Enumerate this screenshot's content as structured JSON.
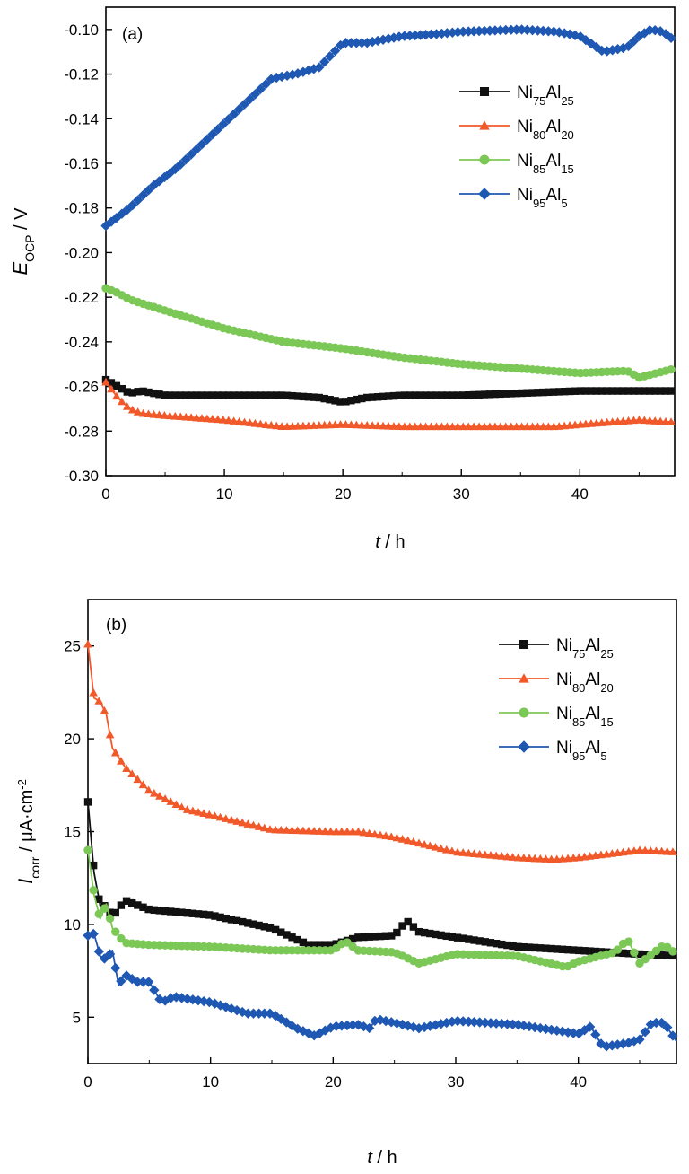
{
  "colors": {
    "Ni75Al25": "#111111",
    "Ni80Al20": "#f2592a",
    "Ni85Al15": "#7cc856",
    "Ni95Al5": "#1f58b3"
  },
  "legend": [
    {
      "key": "Ni75Al25",
      "base": "Ni",
      "sub1": "75",
      "mid": "Al",
      "sub2": "25",
      "marker": "square"
    },
    {
      "key": "Ni80Al20",
      "base": "Ni",
      "sub1": "80",
      "mid": "Al",
      "sub2": "20",
      "marker": "triangle"
    },
    {
      "key": "Ni85Al15",
      "base": "Ni",
      "sub1": "85",
      "mid": "Al",
      "sub2": "15",
      "marker": "circle"
    },
    {
      "key": "Ni95Al5",
      "base": "Ni",
      "sub1": "95",
      "mid": "Al",
      "sub2": "5",
      "marker": "diamond"
    }
  ],
  "chart_data": [
    {
      "type": "line",
      "panel_label": "(a)",
      "xlabel": {
        "italic": "t",
        "rest": " / h"
      },
      "ylabel": {
        "italic": "E",
        "sub": "OCP",
        "rest": " / V"
      },
      "xlim": [
        0,
        48
      ],
      "ylim": [
        -0.3,
        -0.09
      ],
      "xticks": [
        0,
        10,
        20,
        30,
        40
      ],
      "yticks": [
        -0.1,
        -0.12,
        -0.14,
        -0.16,
        -0.18,
        -0.2,
        -0.22,
        -0.24,
        -0.26,
        -0.28,
        -0.3
      ],
      "legend_position": "upper-right",
      "series": [
        {
          "name": "Ni75Al25",
          "x": [
            0,
            1,
            2,
            3,
            5,
            10,
            15,
            18,
            20,
            22,
            25,
            30,
            35,
            40,
            45,
            48
          ],
          "y": [
            -0.257,
            -0.26,
            -0.263,
            -0.262,
            -0.264,
            -0.264,
            -0.264,
            -0.265,
            -0.267,
            -0.265,
            -0.264,
            -0.264,
            -0.263,
            -0.262,
            -0.262,
            -0.262
          ]
        },
        {
          "name": "Ni80Al20",
          "x": [
            0,
            1,
            2,
            3,
            5,
            10,
            15,
            20,
            25,
            30,
            35,
            38,
            40,
            45,
            48
          ],
          "y": [
            -0.258,
            -0.265,
            -0.27,
            -0.272,
            -0.273,
            -0.275,
            -0.278,
            -0.277,
            -0.278,
            -0.278,
            -0.278,
            -0.278,
            -0.277,
            -0.275,
            -0.276
          ]
        },
        {
          "name": "Ni85Al15",
          "x": [
            0,
            1,
            2,
            5,
            10,
            15,
            20,
            25,
            30,
            35,
            40,
            44,
            45,
            48
          ],
          "y": [
            -0.216,
            -0.218,
            -0.221,
            -0.226,
            -0.234,
            -0.24,
            -0.243,
            -0.247,
            -0.25,
            -0.252,
            -0.254,
            -0.253,
            -0.256,
            -0.252
          ]
        },
        {
          "name": "Ni95Al5",
          "x": [
            0,
            2,
            4,
            6,
            8,
            10,
            12,
            14,
            16,
            18,
            20,
            22,
            25,
            28,
            30,
            35,
            38,
            40,
            42,
            44,
            45,
            46,
            47,
            48
          ],
          "y": [
            -0.188,
            -0.18,
            -0.17,
            -0.162,
            -0.152,
            -0.142,
            -0.132,
            -0.122,
            -0.12,
            -0.117,
            -0.106,
            -0.106,
            -0.103,
            -0.102,
            -0.101,
            -0.1,
            -0.101,
            -0.103,
            -0.11,
            -0.108,
            -0.103,
            -0.1,
            -0.101,
            -0.105
          ]
        }
      ]
    },
    {
      "type": "line",
      "panel_label": "(b)",
      "xlabel": {
        "italic": "t",
        "rest": " / h"
      },
      "ylabel": {
        "italic": "I",
        "sub": "corr",
        "rest": " / μA·cm",
        "sup": "-2"
      },
      "xlim": [
        0,
        48
      ],
      "ylim": [
        2.5,
        27.5
      ],
      "xticks": [
        0,
        10,
        20,
        30,
        40
      ],
      "yticks": [
        5,
        10,
        15,
        20,
        25
      ],
      "legend_position": "upper-right",
      "series": [
        {
          "name": "Ni75Al25",
          "x": [
            0,
            0.5,
            1,
            1.5,
            2,
            3,
            5,
            10,
            15,
            18,
            20,
            22,
            25,
            26,
            27,
            30,
            35,
            40,
            45,
            48
          ],
          "y": [
            16.6,
            12.8,
            11.0,
            11.0,
            10.4,
            11.3,
            10.8,
            10.5,
            9.8,
            8.9,
            8.9,
            9.3,
            9.4,
            10.2,
            9.6,
            9.3,
            8.8,
            8.6,
            8.4,
            8.3
          ]
        },
        {
          "name": "Ni80Al20",
          "x": [
            0,
            0.5,
            1,
            1.5,
            2,
            3,
            5,
            8,
            10,
            15,
            20,
            22,
            25,
            30,
            35,
            38,
            40,
            45,
            48
          ],
          "y": [
            25.1,
            22.2,
            22.0,
            21.3,
            19.5,
            18.5,
            17.2,
            16.2,
            15.9,
            15.1,
            15.0,
            15.0,
            14.7,
            13.9,
            13.6,
            13.5,
            13.6,
            14.0,
            13.9
          ]
        },
        {
          "name": "Ni85Al15",
          "x": [
            0,
            0.5,
            1,
            1.5,
            2,
            3,
            5,
            10,
            15,
            20,
            21,
            22,
            25,
            27,
            30,
            35,
            39,
            40,
            43,
            44,
            45,
            47,
            48
          ],
          "y": [
            14.0,
            11.6,
            10.3,
            11.1,
            9.8,
            9.0,
            8.9,
            8.8,
            8.6,
            8.6,
            9.1,
            8.6,
            8.5,
            7.9,
            8.4,
            8.3,
            7.7,
            8.0,
            8.5,
            9.2,
            7.9,
            8.9,
            8.4
          ]
        },
        {
          "name": "Ni95Al5",
          "x": [
            0,
            0.5,
            1,
            1.5,
            2,
            2.5,
            3,
            4,
            5,
            6,
            7,
            10,
            13,
            15,
            17,
            18.5,
            20,
            22,
            23,
            23.5,
            25,
            27,
            30,
            35,
            40,
            41,
            42,
            44,
            45,
            46,
            47,
            48
          ],
          "y": [
            9.4,
            9.5,
            8.3,
            8.1,
            8.6,
            6.7,
            7.3,
            6.9,
            6.9,
            5.8,
            6.1,
            5.8,
            5.2,
            5.2,
            4.4,
            4.0,
            4.5,
            4.6,
            4.4,
            4.9,
            4.7,
            4.4,
            4.8,
            4.6,
            4.1,
            4.5,
            3.4,
            3.6,
            3.8,
            4.7,
            4.7,
            3.7
          ]
        }
      ]
    }
  ]
}
